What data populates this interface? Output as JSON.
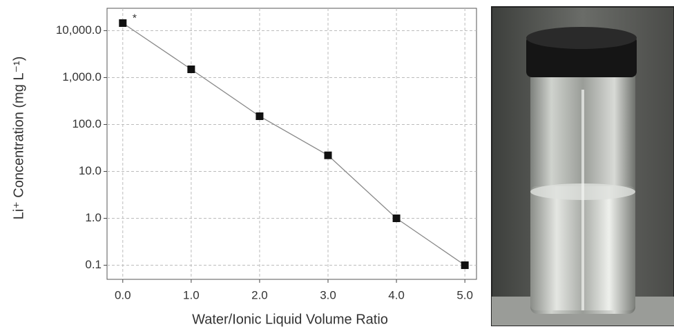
{
  "chart_data": {
    "type": "line",
    "xlabel": "Water/Ionic Liquid Volume Ratio",
    "ylabel": "Li⁺ Concentration (mg L⁻¹)",
    "annotation": "*",
    "x": [
      0,
      1,
      2,
      3,
      4,
      5
    ],
    "values": [
      14500,
      1500,
      150,
      22,
      1.0,
      0.1
    ],
    "color": "#111111",
    "line_color": "#888888",
    "yscale": "log",
    "xlim": [
      -0.23,
      5.17
    ],
    "ylim": [
      0.05,
      30000
    ],
    "xticks": [
      {
        "value": 0,
        "label": "0.0"
      },
      {
        "value": 1,
        "label": "1.0"
      },
      {
        "value": 2,
        "label": "2.0"
      },
      {
        "value": 3,
        "label": "3.0"
      },
      {
        "value": 4,
        "label": "4.0"
      },
      {
        "value": 5,
        "label": "5.0"
      }
    ],
    "yticks": [
      0.1,
      {
        "value": 1,
        "label": "1.0"
      },
      {
        "value": 10,
        "label": "10.0"
      },
      {
        "value": 100,
        "label": "100.0"
      },
      {
        "value": 1000,
        "label": "1,000.0"
      },
      {
        "value": 10000,
        "label": "10,000.0"
      }
    ],
    "grid": true
  }
}
